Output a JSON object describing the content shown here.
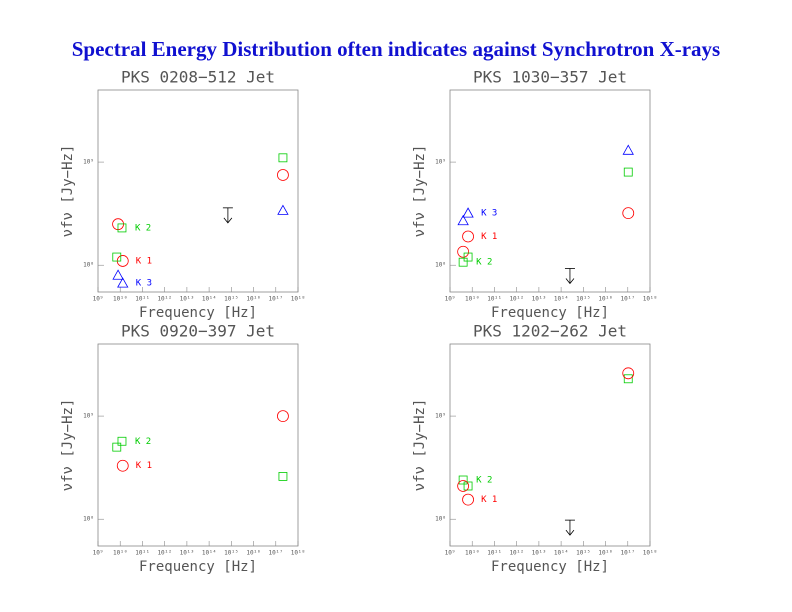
{
  "title": "Spectral Energy Distribution often indicates against Synchrotron X-rays",
  "chart_data": [
    {
      "type": "scatter",
      "title": "PKS 0208−512 Jet",
      "xlabel": "Frequency [Hz]",
      "ylabel": "νfν [Jy−Hz]",
      "xscale": "log",
      "yscale": "log",
      "xlim": [
        1000000000.0,
        1e+18
      ],
      "ylim": [
        55000000.0,
        5000000000.0
      ],
      "xticks": [
        {
          "value": 1000000000.0,
          "label": "10⁹"
        },
        {
          "value": 10000000000.0,
          "label": "10¹⁰"
        },
        {
          "value": 100000000000.0,
          "label": "10¹¹"
        },
        {
          "value": 1000000000000.0,
          "label": "10¹²"
        },
        {
          "value": 10000000000000.0,
          "label": "10¹³"
        },
        {
          "value": 100000000000000.0,
          "label": "10¹⁴"
        },
        {
          "value": 1000000000000000.0,
          "label": "10¹⁵"
        },
        {
          "value": 1e+16,
          "label": "10¹⁶"
        },
        {
          "value": 1e+17,
          "label": "10¹⁷"
        },
        {
          "value": 1e+18,
          "label": "10¹⁸"
        }
      ],
      "yticks": [
        {
          "value": 100000000.0,
          "label": "10⁸"
        },
        {
          "value": 1000000000.0,
          "label": "10⁹"
        }
      ],
      "series": [
        {
          "name": "K 1",
          "color": "#ff0000",
          "marker": "circle",
          "x": [
            13000000000.0,
            8000000000.0,
            2.1e+17
          ],
          "values": [
            110000000.0,
            250000000.0,
            750000000.0
          ]
        },
        {
          "name": "K 2",
          "color": "#00cc00",
          "marker": "square",
          "x": [
            12000000000.0,
            7000000000.0,
            2.1e+17
          ],
          "values": [
            230000000.0,
            120000000.0,
            1100000000.0
          ]
        },
        {
          "name": "K 3",
          "color": "#0000ff",
          "marker": "triangle",
          "x": [
            13000000000.0,
            8000000000.0,
            2.1e+17
          ],
          "values": [
            67000000.0,
            80000000.0,
            340000000.0
          ]
        }
      ],
      "upper_limit": {
        "x": 700000000000000.0,
        "y": 360000000.0
      }
    },
    {
      "type": "scatter",
      "title": "PKS 1030−357 Jet",
      "xlabel": "Frequency [Hz]",
      "ylabel": "νfν [Jy−Hz]",
      "xscale": "log",
      "yscale": "log",
      "xlim": [
        1000000000.0,
        1e+18
      ],
      "ylim": [
        55000000.0,
        5000000000.0
      ],
      "xticks": [
        {
          "value": 1000000000.0,
          "label": "10⁹"
        },
        {
          "value": 10000000000.0,
          "label": "10¹⁰"
        },
        {
          "value": 100000000000.0,
          "label": "10¹¹"
        },
        {
          "value": 1000000000000.0,
          "label": "10¹²"
        },
        {
          "value": 10000000000000.0,
          "label": "10¹³"
        },
        {
          "value": 100000000000000.0,
          "label": "10¹⁴"
        },
        {
          "value": 1000000000000000.0,
          "label": "10¹⁵"
        },
        {
          "value": 1e+16,
          "label": "10¹⁶"
        },
        {
          "value": 1e+17,
          "label": "10¹⁷"
        },
        {
          "value": 1e+18,
          "label": "10¹⁸"
        }
      ],
      "yticks": [
        {
          "value": 100000000.0,
          "label": "10⁸"
        },
        {
          "value": 1000000000.0,
          "label": "10⁹"
        }
      ],
      "series": [
        {
          "name": "K 3",
          "color": "#0000ff",
          "marker": "triangle",
          "x": [
            6500000000.0,
            3900000000.0,
            1.05e+17
          ],
          "values": [
            320000000.0,
            270000000.0,
            1300000000.0
          ]
        },
        {
          "name": "K 1",
          "color": "#ff0000",
          "marker": "circle",
          "x": [
            6500000000.0,
            3900000000.0,
            1.05e+17
          ],
          "values": [
            190000000.0,
            135000000.0,
            320000000.0
          ]
        },
        {
          "name": "K 2",
          "color": "#00cc00",
          "marker": "square",
          "x": [
            3900000000.0,
            6500000000.0,
            1.05e+17
          ],
          "values": [
            107000000.0,
            120000000.0,
            800000000.0
          ]
        }
      ],
      "upper_limit": {
        "x": 250000000000000.0,
        "y": 93000000.0
      }
    },
    {
      "type": "scatter",
      "title": "PKS 0920−397 Jet",
      "xlabel": "Frequency [Hz]",
      "ylabel": "νfν [Jy−Hz]",
      "xscale": "log",
      "yscale": "log",
      "xlim": [
        1000000000.0,
        1e+18
      ],
      "ylim": [
        55000000.0,
        5000000000.0
      ],
      "xticks": [
        {
          "value": 1000000000.0,
          "label": "10⁹"
        },
        {
          "value": 10000000000.0,
          "label": "10¹⁰"
        },
        {
          "value": 100000000000.0,
          "label": "10¹¹"
        },
        {
          "value": 1000000000000.0,
          "label": "10¹²"
        },
        {
          "value": 10000000000000.0,
          "label": "10¹³"
        },
        {
          "value": 100000000000000.0,
          "label": "10¹⁴"
        },
        {
          "value": 1000000000000000.0,
          "label": "10¹⁵"
        },
        {
          "value": 1e+16,
          "label": "10¹⁶"
        },
        {
          "value": 1e+17,
          "label": "10¹⁷"
        },
        {
          "value": 1e+18,
          "label": "10¹⁸"
        }
      ],
      "yticks": [
        {
          "value": 100000000.0,
          "label": "10⁸"
        },
        {
          "value": 1000000000.0,
          "label": "10⁹"
        }
      ],
      "series": [
        {
          "name": "K 2",
          "color": "#00cc00",
          "marker": "square",
          "x": [
            12000000000.0,
            7000000000.0,
            2.1e+17
          ],
          "values": [
            570000000.0,
            500000000.0,
            260000000.0
          ]
        },
        {
          "name": "K 1",
          "color": "#ff0000",
          "marker": "circle",
          "x": [
            13000000000.0,
            2.1e+17
          ],
          "values": [
            330000000.0,
            1000000000.0
          ]
        }
      ]
    },
    {
      "type": "scatter",
      "title": "PKS 1202−262 Jet",
      "xlabel": "Frequency [Hz]",
      "ylabel": "νfν [Jy−Hz]",
      "xscale": "log",
      "yscale": "log",
      "xlim": [
        1000000000.0,
        1e+18
      ],
      "ylim": [
        55000000.0,
        5000000000.0
      ],
      "xticks": [
        {
          "value": 1000000000.0,
          "label": "10⁹"
        },
        {
          "value": 10000000000.0,
          "label": "10¹⁰"
        },
        {
          "value": 100000000000.0,
          "label": "10¹¹"
        },
        {
          "value": 1000000000000.0,
          "label": "10¹²"
        },
        {
          "value": 10000000000000.0,
          "label": "10¹³"
        },
        {
          "value": 100000000000000.0,
          "label": "10¹⁴"
        },
        {
          "value": 1000000000000000.0,
          "label": "10¹⁵"
        },
        {
          "value": 1e+16,
          "label": "10¹⁶"
        },
        {
          "value": 1e+17,
          "label": "10¹⁷"
        },
        {
          "value": 1e+18,
          "label": "10¹⁸"
        }
      ],
      "yticks": [
        {
          "value": 100000000.0,
          "label": "10⁸"
        },
        {
          "value": 1000000000.0,
          "label": "10⁹"
        }
      ],
      "series": [
        {
          "name": "K 2",
          "color": "#00cc00",
          "marker": "square",
          "x": [
            3900000000.0,
            6500000000.0,
            1.05e+17
          ],
          "values": [
            240000000.0,
            210000000.0,
            2300000000.0
          ]
        },
        {
          "name": "K 1",
          "color": "#ff0000",
          "marker": "circle",
          "x": [
            6500000000.0,
            3900000000.0,
            1.05e+17
          ],
          "values": [
            155000000.0,
            210000000.0,
            2600000000.0
          ]
        }
      ],
      "upper_limit": {
        "x": 250000000000000.0,
        "y": 98000000.0
      }
    }
  ]
}
